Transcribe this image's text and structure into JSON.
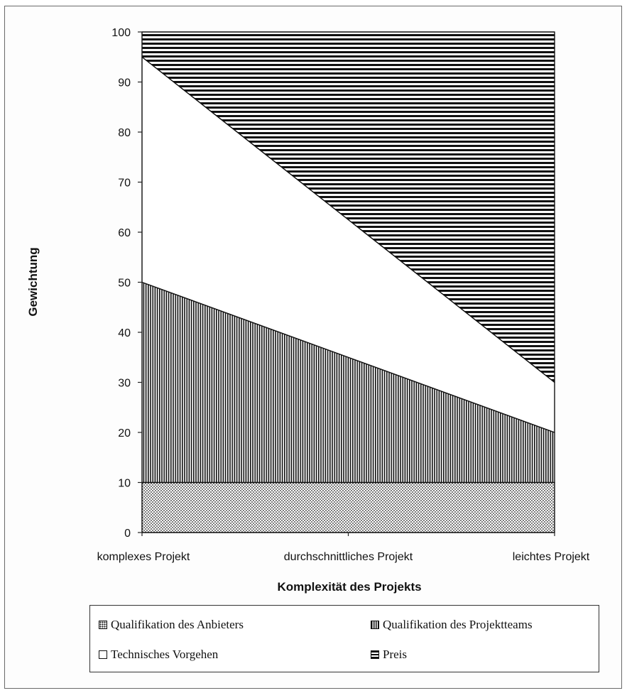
{
  "chart_data": {
    "type": "area",
    "stacked": true,
    "categories": [
      "komplexes Projekt",
      "durchschnittliches Projekt",
      "leichtes Projekt"
    ],
    "xlabel": "Komplexität des Projekts",
    "ylabel": "Gewichtung",
    "ylim": [
      0,
      100
    ],
    "yticks": [
      0,
      10,
      20,
      30,
      40,
      50,
      60,
      70,
      80,
      90,
      100
    ],
    "grid": false,
    "legend_position": "bottom",
    "series": [
      {
        "name": "Qualifikation des Anbieters",
        "values": [
          10,
          10,
          10
        ],
        "pattern": "dots"
      },
      {
        "name": "Qualifikation des Projektteams",
        "values": [
          40,
          25,
          10
        ],
        "pattern": "vertical-lines"
      },
      {
        "name": "Technisches Vorgehen",
        "values": [
          45,
          27.5,
          10
        ],
        "pattern": "white"
      },
      {
        "name": "Preis",
        "values": [
          5,
          37.5,
          70
        ],
        "pattern": "horizontal-lines"
      }
    ],
    "colors": {
      "ink": "#111111",
      "background": "#ffffff",
      "frame": "#6a6a6a"
    }
  }
}
